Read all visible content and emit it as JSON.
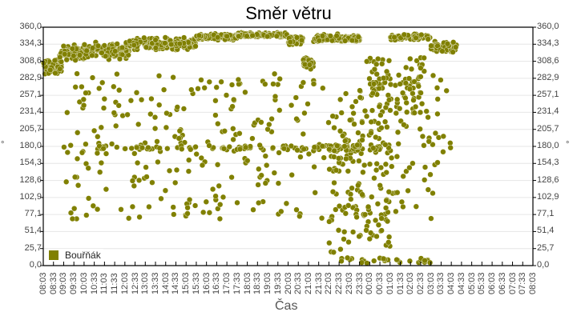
{
  "chart_data": {
    "type": "scatter",
    "title": "Směr větru",
    "xlabel": "Čas",
    "ylabel": "°",
    "ylim": [
      0,
      360
    ],
    "y_ticks": [
      "360,0",
      "334,3",
      "308,6",
      "282,9",
      "257,1",
      "231,4",
      "205,7",
      "180,0",
      "154,3",
      "128,6",
      "102,9",
      "77,1",
      "51,4",
      "25,7",
      "0,0"
    ],
    "x_ticks": [
      "08:03",
      "08:33",
      "09:03",
      "09:33",
      "10:03",
      "10:33",
      "11:03",
      "11:33",
      "12:03",
      "12:33",
      "13:03",
      "13:33",
      "14:03",
      "14:33",
      "15:03",
      "15:33",
      "16:03",
      "16:33",
      "17:03",
      "17:33",
      "18:03",
      "18:33",
      "19:03",
      "19:33",
      "20:03",
      "20:33",
      "21:03",
      "21:33",
      "22:03",
      "22:33",
      "23:03",
      "23:33",
      "00:03",
      "00:33",
      "01:03",
      "01:33",
      "02:03",
      "02:33",
      "03:03",
      "03:33",
      "04:03",
      "04:33",
      "05:03",
      "05:33",
      "06:03",
      "06:33",
      "07:03",
      "07:33",
      "08:03"
    ],
    "grid": true,
    "legend_position": "bottom-left inside",
    "series": [
      {
        "name": "Bouřňák",
        "color": "#808000",
        "description": "Wind direction samples over 24h; dense band near 290–355°, scattered points across all directions, notable clusters around 180° and in 03:33–06:03 window",
        "clusters": [
          {
            "x_from": 0.0,
            "x_to": 1.8,
            "y_center": 300,
            "y_spread": 14,
            "count": 90
          },
          {
            "x_from": 1.6,
            "x_to": 4.5,
            "y_center": 322,
            "y_spread": 14,
            "count": 110
          },
          {
            "x_from": 4.0,
            "x_to": 8.5,
            "y_center": 325,
            "y_spread": 16,
            "count": 120
          },
          {
            "x_from": 8.0,
            "x_to": 15.0,
            "y_center": 335,
            "y_spread": 12,
            "count": 180
          },
          {
            "x_from": 15.0,
            "x_to": 19.0,
            "y_center": 345,
            "y_spread": 6,
            "count": 100
          },
          {
            "x_from": 19.0,
            "x_to": 24.0,
            "y_center": 348,
            "y_spread": 5,
            "count": 140
          },
          {
            "x_from": 24.0,
            "x_to": 25.5,
            "y_center": 340,
            "y_spread": 10,
            "count": 50
          },
          {
            "x_from": 25.5,
            "x_to": 26.5,
            "y_center": 305,
            "y_spread": 12,
            "count": 40
          },
          {
            "x_from": 26.5,
            "x_to": 31.0,
            "y_center": 343,
            "y_spread": 8,
            "count": 110
          },
          {
            "x_from": 34.0,
            "x_to": 38.0,
            "y_center": 345,
            "y_spread": 6,
            "count": 60
          },
          {
            "x_from": 38.0,
            "x_to": 40.5,
            "y_center": 330,
            "y_spread": 12,
            "count": 60
          },
          {
            "x_from": 2.0,
            "x_to": 40.0,
            "y_center": 180,
            "y_spread": 110,
            "count": 340
          },
          {
            "x_from": 5.0,
            "x_to": 30.0,
            "y_center": 178,
            "y_spread": 6,
            "count": 80
          },
          {
            "x_from": 28.0,
            "x_to": 34.0,
            "y_center": 120,
            "y_spread": 100,
            "count": 110
          },
          {
            "x_from": 28.0,
            "x_to": 33.0,
            "y_center": 178,
            "y_spread": 8,
            "count": 50
          },
          {
            "x_from": 31.0,
            "x_to": 37.5,
            "y_center": 270,
            "y_spread": 45,
            "count": 90
          },
          {
            "x_from": 29.0,
            "x_to": 38.0,
            "y_center": 8,
            "y_spread": 6,
            "count": 30
          }
        ]
      }
    ]
  },
  "legend": {
    "label": "Bouřňák",
    "color": "#808000"
  },
  "x_axis": {
    "title": "Čas"
  },
  "y_axis": {
    "unit": "°"
  }
}
